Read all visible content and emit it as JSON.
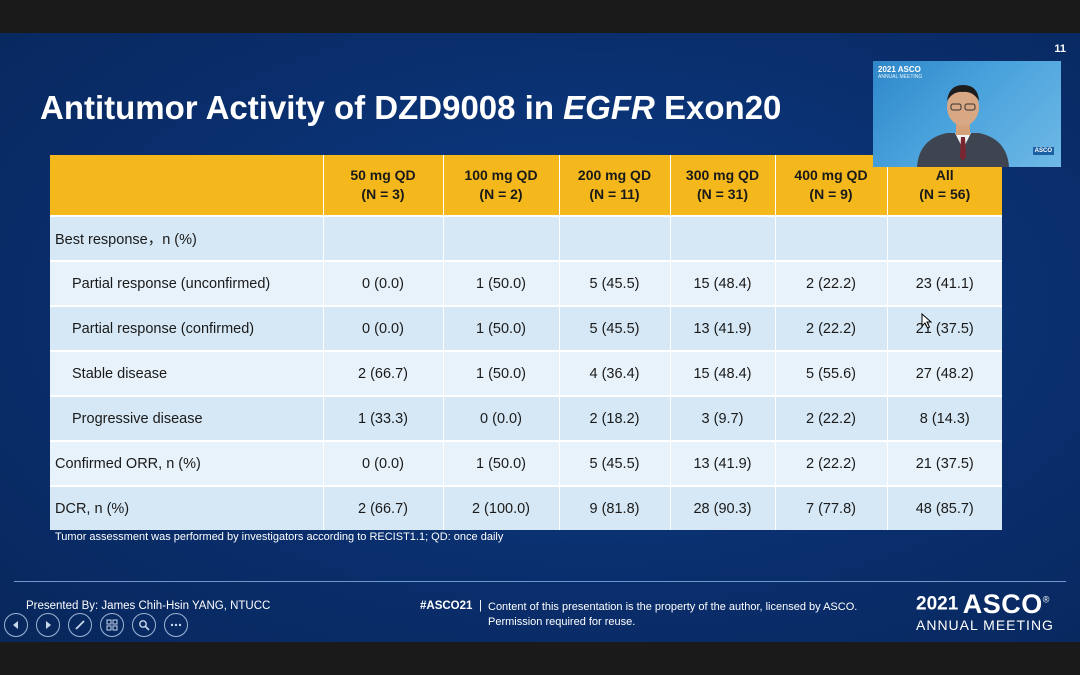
{
  "slide": {
    "number": "11",
    "title_pre": "Antitumor Activity of DZD9008 in ",
    "title_em": "EGFR",
    "title_post": " Exon20"
  },
  "table": {
    "headers": [
      {
        "dose": "",
        "n": ""
      },
      {
        "dose": "50 mg QD",
        "n": "(N = 3)"
      },
      {
        "dose": "100 mg QD",
        "n": "(N = 2)"
      },
      {
        "dose": "200 mg QD",
        "n": "(N = 11)"
      },
      {
        "dose": "300 mg QD",
        "n": "(N = 31)"
      },
      {
        "dose": "400 mg QD",
        "n": "(N = 9)"
      },
      {
        "dose": "All",
        "n": "(N = 56)"
      }
    ],
    "rows": [
      {
        "label": "Best response，n (%)",
        "cells": [
          "",
          "",
          "",
          "",
          "",
          ""
        ]
      },
      {
        "label": "Partial response (unconfirmed)",
        "cells": [
          "0 (0.0)",
          "1 (50.0)",
          "5 (45.5)",
          "15 (48.4)",
          "2 (22.2)",
          "23 (41.1)"
        ]
      },
      {
        "label": "Partial response (confirmed)",
        "cells": [
          "0 (0.0)",
          "1 (50.0)",
          "5 (45.5)",
          "13 (41.9)",
          "2 (22.2)",
          "21 (37.5)"
        ]
      },
      {
        "label": "Stable disease",
        "cells": [
          "2 (66.7)",
          "1 (50.0)",
          "4 (36.4)",
          "15 (48.4)",
          "5 (55.6)",
          "27 (48.2)"
        ]
      },
      {
        "label": "Progressive disease",
        "cells": [
          "1 (33.3)",
          "0 (0.0)",
          "2 (18.2)",
          "3 (9.7)",
          "2 (22.2)",
          "8 (14.3)"
        ]
      },
      {
        "label": "Confirmed ORR, n (%)",
        "cells": [
          "0 (0.0)",
          "1 (50.0)",
          "5 (45.5)",
          "13 (41.9)",
          "2 (22.2)",
          "21 (37.5)"
        ]
      },
      {
        "label": "DCR, n (%)",
        "cells": [
          "2 (66.7)",
          "2 (100.0)",
          "9 (81.8)",
          "28 (90.3)",
          "7 (77.8)",
          "48 (85.7)"
        ]
      }
    ]
  },
  "footnote": "Tumor assessment was performed by investigators according to RECIST1.1; QD: once daily",
  "footer": {
    "presented": "Presented By:  James Chih-Hsin YANG, NTUCC",
    "hashtag": "#ASCO21",
    "separator": "|",
    "copyright_line1": "Content of this presentation is the property of the author, licensed by ASCO.",
    "copyright_line2": "Permission required for reuse.",
    "logo_year": "2021",
    "logo_name": "ASCO",
    "logo_reg": "®",
    "logo_meeting": "ANNUAL MEETING"
  },
  "video": {
    "logo": "2021 ASCO",
    "sub": "ANNUAL MEETING",
    "badge": "ASCO"
  },
  "controls": [
    "previous-icon",
    "next-icon",
    "pen-icon",
    "slides-icon",
    "zoom-icon",
    "more-icon"
  ],
  "colors": {
    "slide_bg": "#0a2f6e",
    "header": "#f5b81c",
    "row_a": "#d6e8f5",
    "row_b": "#e8f2fa"
  }
}
